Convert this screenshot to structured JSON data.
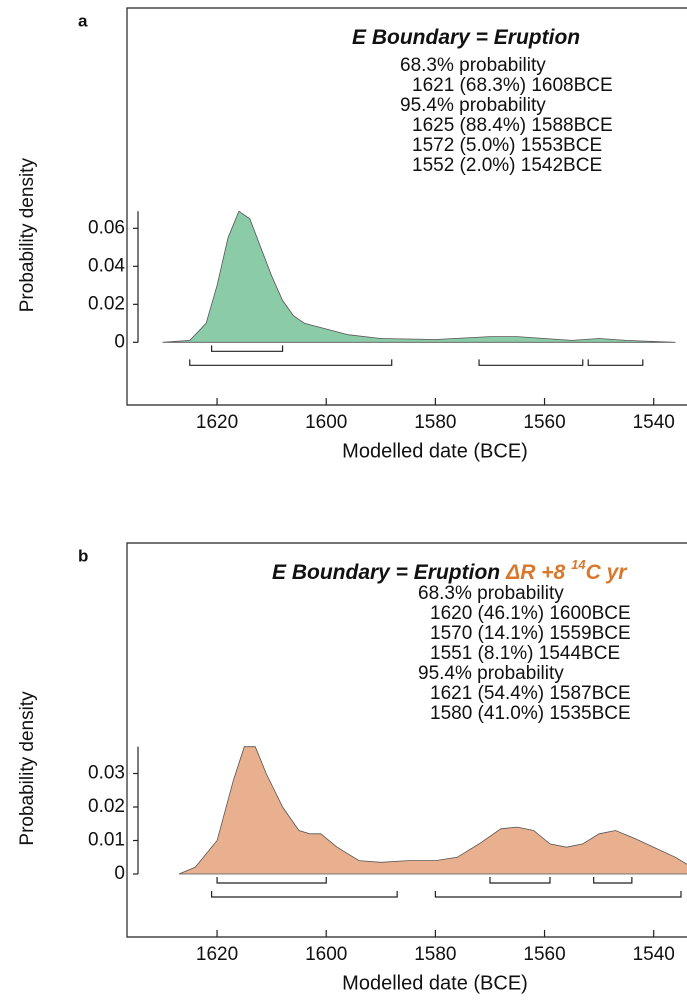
{
  "chart_data": [
    {
      "type": "area",
      "panel_label": "a",
      "title": "E Boundary = Eruption",
      "intervals": [
        {
          "label": "68.3% probability",
          "ranges": [
            {
              "label": "1621 (68.3%) 1608BCE",
              "from": 1621,
              "to": 1608
            }
          ]
        },
        {
          "label": "95.4% probability",
          "ranges": [
            {
              "label": "1625 (88.4%) 1588BCE",
              "from": 1625,
              "to": 1588
            },
            {
              "label": "1572 (5.0%) 1553BCE",
              "from": 1572,
              "to": 1553
            },
            {
              "label": "1552 (2.0%) 1542BCE",
              "from": 1552,
              "to": 1542
            }
          ]
        }
      ],
      "x": [
        1630,
        1625,
        1622,
        1620,
        1618,
        1616,
        1614,
        1612,
        1610,
        1608,
        1606,
        1604,
        1600,
        1596,
        1590,
        1580,
        1570,
        1565,
        1560,
        1555,
        1550,
        1545,
        1536
      ],
      "values": [
        0,
        0.001,
        0.01,
        0.03,
        0.055,
        0.069,
        0.065,
        0.05,
        0.035,
        0.022,
        0.014,
        0.01,
        0.007,
        0.004,
        0.002,
        0.0015,
        0.003,
        0.003,
        0.002,
        0.001,
        0.002,
        0.001,
        0
      ],
      "color": "#8ccba7",
      "xlabel": "Modelled date (BCE)",
      "ylabel": "Probability density",
      "xlim": [
        1636.5,
        1533.9
      ],
      "xticks": [
        1620,
        1600,
        1580,
        1560,
        1540
      ],
      "ylim": [
        -0.033,
        0.176
      ],
      "yticks": [
        {
          "value": 0,
          "label": "0"
        },
        0.02,
        0.04,
        0.06
      ]
    },
    {
      "type": "area",
      "panel_label": "b",
      "title": "E Boundary = Eruption",
      "annotation": {
        "text": "ΔR +8",
        "sup": "14",
        "unit": "C yr"
      },
      "annotation_color": "#d9782d",
      "intervals": [
        {
          "label": "68.3% probability",
          "ranges": [
            {
              "label": "1620 (46.1%) 1600BCE",
              "from": 1620,
              "to": 1600
            },
            {
              "label": "1570 (14.1%) 1559BCE",
              "from": 1570,
              "to": 1559
            },
            {
              "label": "1551 (8.1%) 1544BCE",
              "from": 1551,
              "to": 1544
            }
          ]
        },
        {
          "label": "95.4% probability",
          "ranges": [
            {
              "label": "1621 (54.4%) 1587BCE",
              "from": 1621,
              "to": 1587
            },
            {
              "label": "1580 (41.0%) 1535BCE",
              "from": 1580,
              "to": 1535
            }
          ]
        }
      ],
      "x": [
        1627,
        1624,
        1620,
        1617,
        1615,
        1613,
        1611,
        1608,
        1605,
        1603,
        1601,
        1598,
        1594,
        1590,
        1585,
        1580,
        1576,
        1572,
        1568,
        1565,
        1562,
        1559,
        1556,
        1553,
        1550,
        1547,
        1544,
        1540,
        1536,
        1534,
        1530,
        1528
      ],
      "values": [
        0,
        0.002,
        0.01,
        0.028,
        0.038,
        0.038,
        0.03,
        0.02,
        0.013,
        0.012,
        0.012,
        0.008,
        0.004,
        0.0035,
        0.004,
        0.004,
        0.005,
        0.009,
        0.0135,
        0.014,
        0.013,
        0.009,
        0.008,
        0.009,
        0.012,
        0.013,
        0.011,
        0.008,
        0.005,
        0.003,
        0.001,
        0
      ],
      "color": "#e8b08e",
      "xlabel": "Modelled date (BCE)",
      "ylabel": "Probability density",
      "xlim": [
        1636.5,
        1533.9
      ],
      "xticks": [
        1620,
        1600,
        1580,
        1560,
        1540
      ],
      "ylim": [
        -0.0188,
        0.0988
      ],
      "yticks": [
        {
          "value": 0,
          "label": "0"
        },
        0.01,
        0.02,
        0.03
      ]
    }
  ]
}
